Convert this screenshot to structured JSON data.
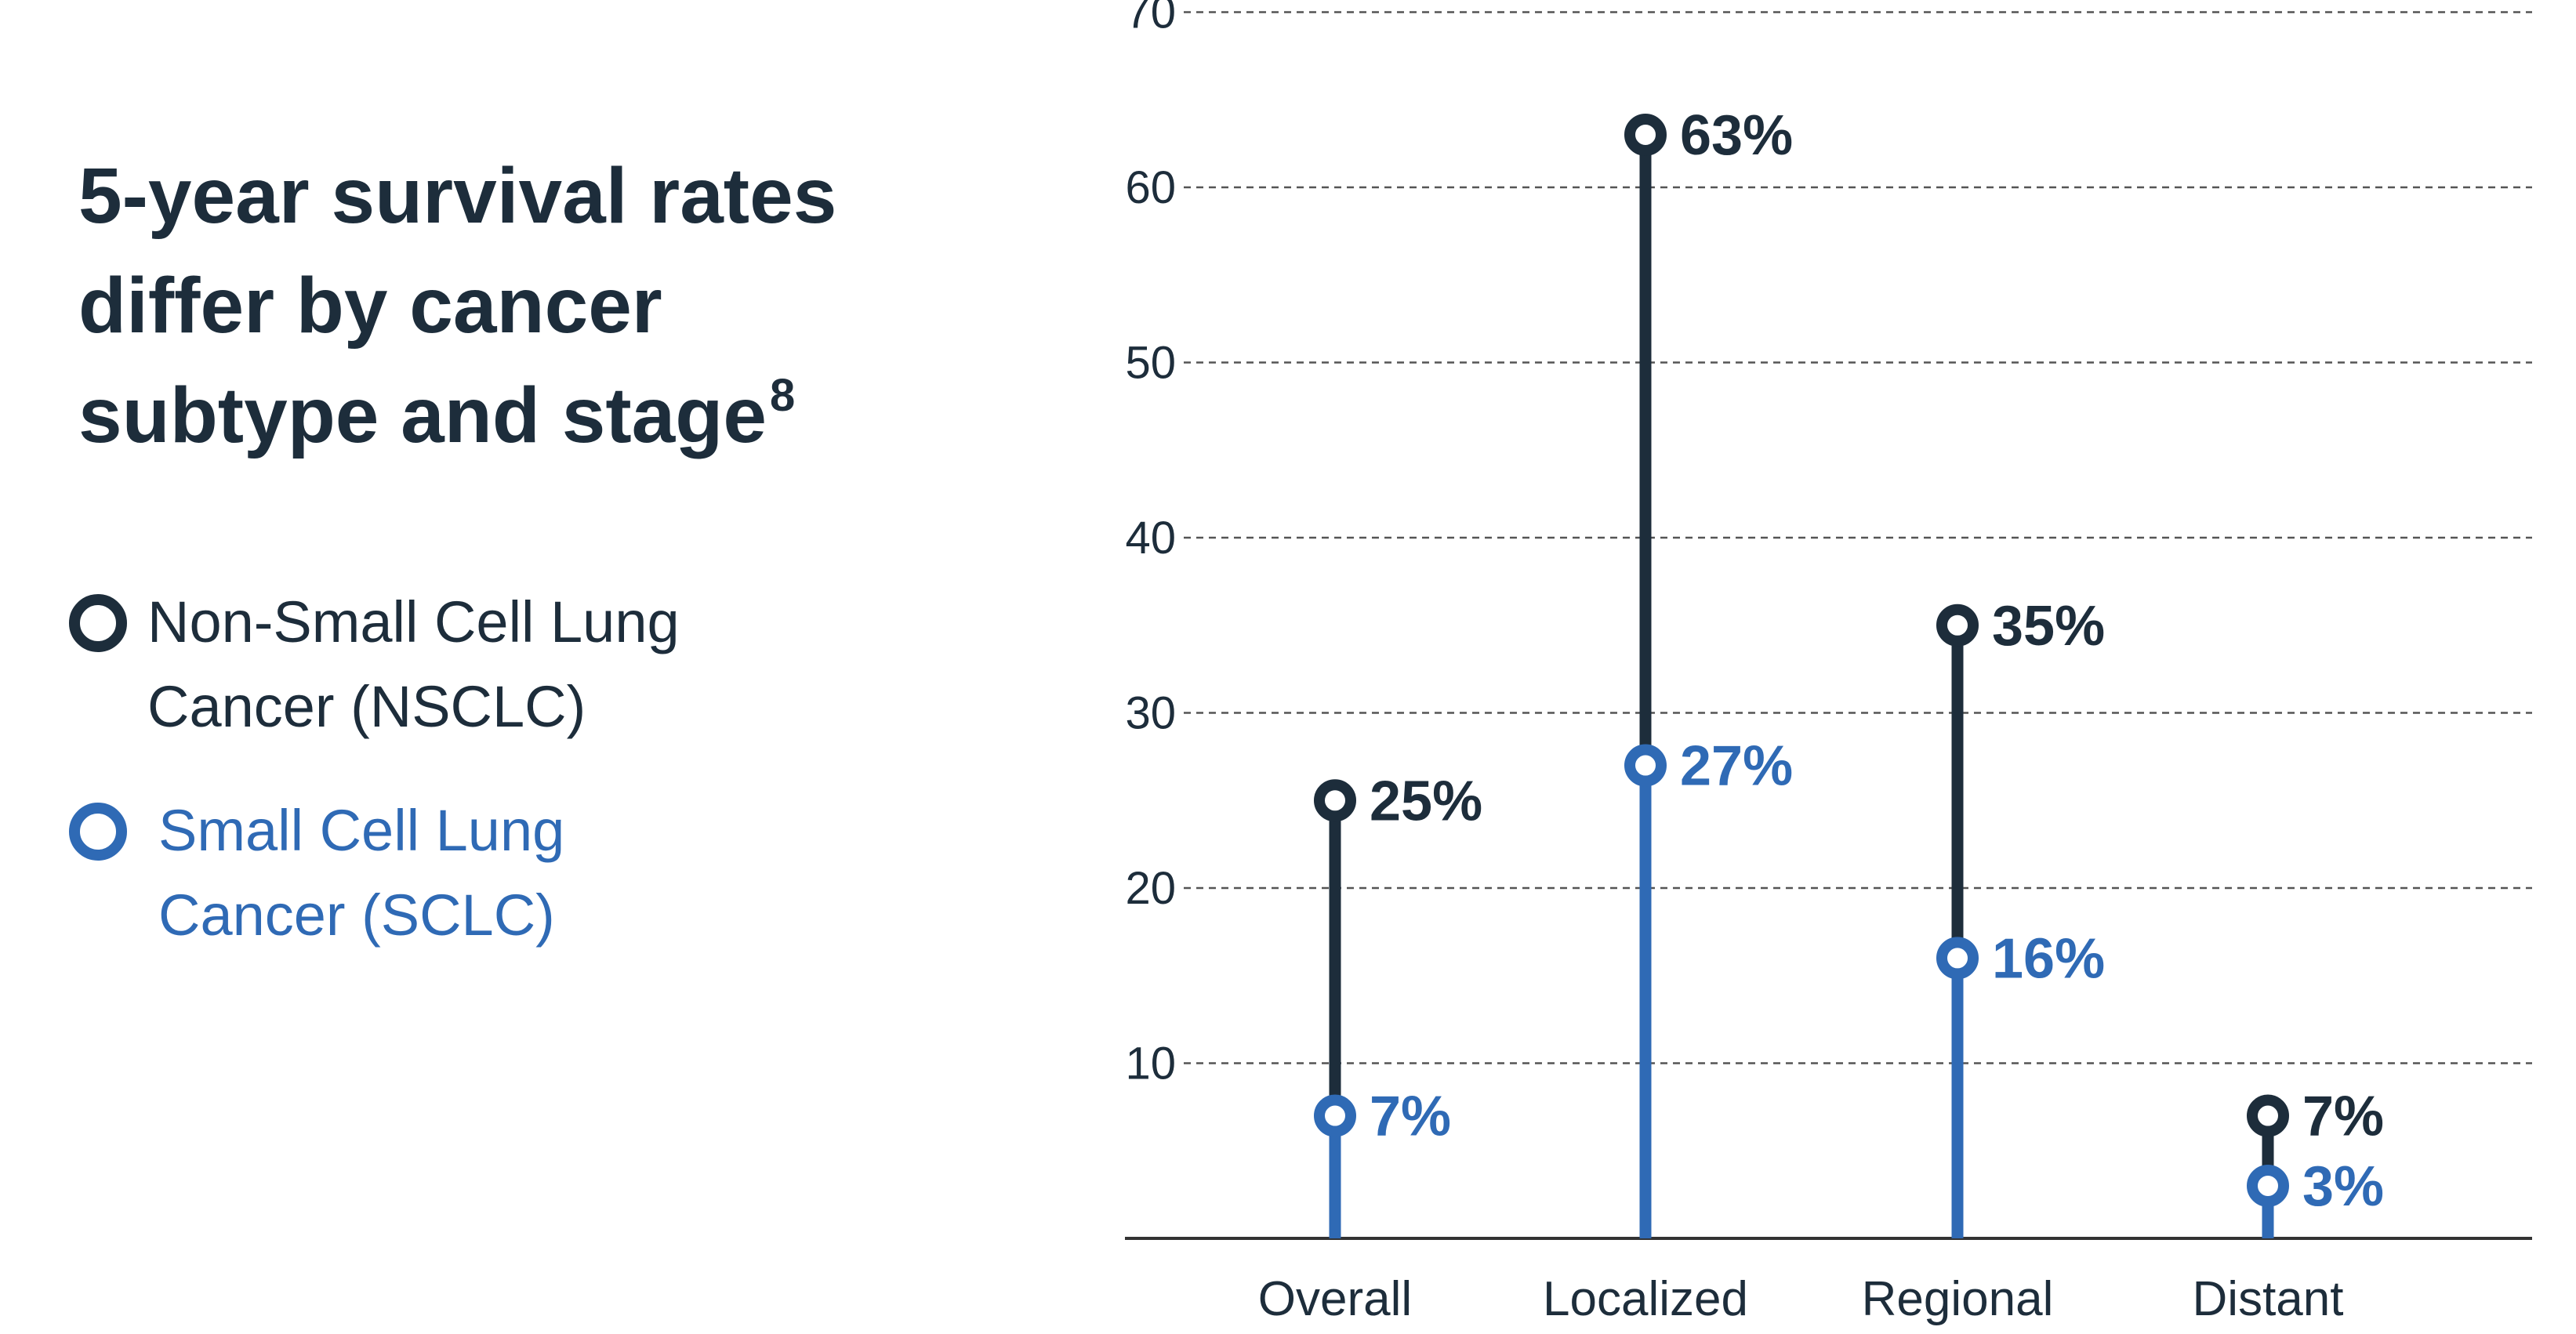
{
  "title": {
    "line1": "5-year survival rates",
    "line2": "differ by cancer",
    "line3": "subtype and stage",
    "footnote": "8"
  },
  "legend": {
    "nsclc": {
      "line1": "Non-Small Cell Lung",
      "line2": "Cancer (NSCLC)"
    },
    "sclc": {
      "line1": "Small Cell Lung",
      "line2": "Cancer (SCLC)"
    }
  },
  "colors": {
    "nsclc": "#1d2d3b",
    "sclc": "#2f6ab5",
    "grid": "#555555",
    "axis": "#333333",
    "tick_text": "#1d2d3b"
  },
  "chart_data": {
    "type": "lollipop",
    "categories": [
      "Overall",
      "Localized",
      "Regional",
      "Distant"
    ],
    "series": [
      {
        "key": "nsclc",
        "values": [
          25,
          63,
          35,
          7
        ],
        "labels": [
          "25%",
          "63%",
          "35%",
          "7%"
        ]
      },
      {
        "key": "sclc",
        "values": [
          7,
          27,
          16,
          3
        ],
        "labels": [
          "7%",
          "27%",
          "16%",
          "3%"
        ]
      }
    ],
    "ylim": [
      0,
      70
    ],
    "yticks": [
      10,
      20,
      30,
      40,
      50,
      60,
      70
    ],
    "grid": true,
    "legend_placement": "left"
  }
}
